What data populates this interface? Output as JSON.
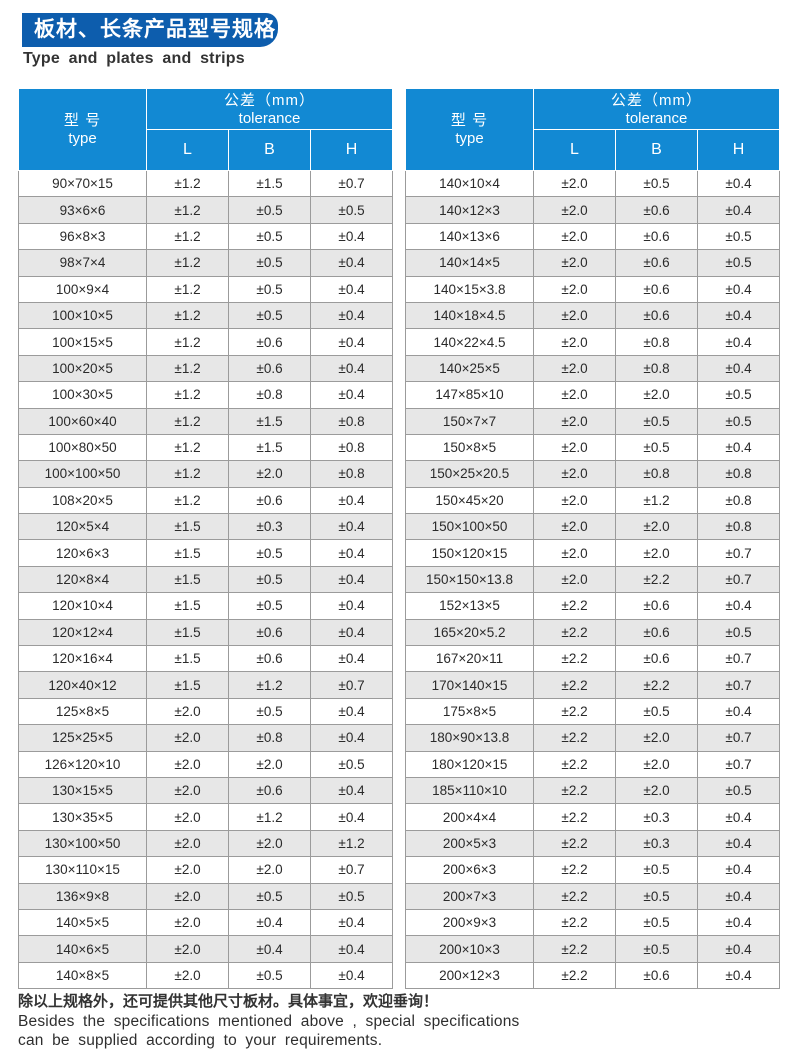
{
  "page": {
    "title_cn": "板材、长条产品型号规格",
    "title_en": "Type and plates and strips"
  },
  "colors": {
    "ribbon_blue": "#0d5dad",
    "header_blue": "#1289d3",
    "row_alt_gray": "#e7e7e7",
    "border_gray": "#9b9b9b"
  },
  "table_header": {
    "type_label_cn": "型  号",
    "type_label_en": "type",
    "tolerance_label_cn": "公差（mm）",
    "tolerance_label_en": "tolerance",
    "col_l": "L",
    "col_b": "B",
    "col_h": "H"
  },
  "left_table_rows": [
    {
      "t": "90×70×15",
      "l": "±1.2",
      "b": "±1.5",
      "h": "±0.7"
    },
    {
      "t": "93×6×6",
      "l": "±1.2",
      "b": "±0.5",
      "h": "±0.5"
    },
    {
      "t": "96×8×3",
      "l": "±1.2",
      "b": "±0.5",
      "h": "±0.4"
    },
    {
      "t": "98×7×4",
      "l": "±1.2",
      "b": "±0.5",
      "h": "±0.4"
    },
    {
      "t": "100×9×4",
      "l": "±1.2",
      "b": "±0.5",
      "h": "±0.4"
    },
    {
      "t": "100×10×5",
      "l": "±1.2",
      "b": "±0.5",
      "h": "±0.4"
    },
    {
      "t": "100×15×5",
      "l": "±1.2",
      "b": "±0.6",
      "h": "±0.4"
    },
    {
      "t": "100×20×5",
      "l": "±1.2",
      "b": "±0.6",
      "h": "±0.4"
    },
    {
      "t": "100×30×5",
      "l": "±1.2",
      "b": "±0.8",
      "h": "±0.4"
    },
    {
      "t": "100×60×40",
      "l": "±1.2",
      "b": "±1.5",
      "h": "±0.8"
    },
    {
      "t": "100×80×50",
      "l": "±1.2",
      "b": "±1.5",
      "h": "±0.8"
    },
    {
      "t": "100×100×50",
      "l": "±1.2",
      "b": "±2.0",
      "h": "±0.8"
    },
    {
      "t": "108×20×5",
      "l": "±1.2",
      "b": "±0.6",
      "h": "±0.4"
    },
    {
      "t": "120×5×4",
      "l": "±1.5",
      "b": "±0.3",
      "h": "±0.4"
    },
    {
      "t": "120×6×3",
      "l": "±1.5",
      "b": "±0.5",
      "h": "±0.4"
    },
    {
      "t": "120×8×4",
      "l": "±1.5",
      "b": "±0.5",
      "h": "±0.4"
    },
    {
      "t": "120×10×4",
      "l": "±1.5",
      "b": "±0.5",
      "h": "±0.4"
    },
    {
      "t": "120×12×4",
      "l": "±1.5",
      "b": "±0.6",
      "h": "±0.4"
    },
    {
      "t": "120×16×4",
      "l": "±1.5",
      "b": "±0.6",
      "h": "±0.4"
    },
    {
      "t": "120×40×12",
      "l": "±1.5",
      "b": "±1.2",
      "h": "±0.7"
    },
    {
      "t": "125×8×5",
      "l": "±2.0",
      "b": "±0.5",
      "h": "±0.4"
    },
    {
      "t": "125×25×5",
      "l": "±2.0",
      "b": "±0.8",
      "h": "±0.4"
    },
    {
      "t": "126×120×10",
      "l": "±2.0",
      "b": "±2.0",
      "h": "±0.5"
    },
    {
      "t": "130×15×5",
      "l": "±2.0",
      "b": "±0.6",
      "h": "±0.4"
    },
    {
      "t": "130×35×5",
      "l": "±2.0",
      "b": "±1.2",
      "h": "±0.4"
    },
    {
      "t": "130×100×50",
      "l": "±2.0",
      "b": "±2.0",
      "h": "±1.2"
    },
    {
      "t": "130×110×15",
      "l": "±2.0",
      "b": "±2.0",
      "h": "±0.7"
    },
    {
      "t": "136×9×8",
      "l": "±2.0",
      "b": "±0.5",
      "h": "±0.5"
    },
    {
      "t": "140×5×5",
      "l": "±2.0",
      "b": "±0.4",
      "h": "±0.4"
    },
    {
      "t": "140×6×5",
      "l": "±2.0",
      "b": "±0.4",
      "h": "±0.4"
    },
    {
      "t": "140×8×5",
      "l": "±2.0",
      "b": "±0.5",
      "h": "±0.4"
    }
  ],
  "right_table_rows": [
    {
      "t": "140×10×4",
      "l": "±2.0",
      "b": "±0.5",
      "h": "±0.4"
    },
    {
      "t": "140×12×3",
      "l": "±2.0",
      "b": "±0.6",
      "h": "±0.4"
    },
    {
      "t": "140×13×6",
      "l": "±2.0",
      "b": "±0.6",
      "h": "±0.5"
    },
    {
      "t": "140×14×5",
      "l": "±2.0",
      "b": "±0.6",
      "h": "±0.5"
    },
    {
      "t": "140×15×3.8",
      "l": "±2.0",
      "b": "±0.6",
      "h": "±0.4"
    },
    {
      "t": "140×18×4.5",
      "l": "±2.0",
      "b": "±0.6",
      "h": "±0.4"
    },
    {
      "t": "140×22×4.5",
      "l": "±2.0",
      "b": "±0.8",
      "h": "±0.4"
    },
    {
      "t": "140×25×5",
      "l": "±2.0",
      "b": "±0.8",
      "h": "±0.4"
    },
    {
      "t": "147×85×10",
      "l": "±2.0",
      "b": "±2.0",
      "h": "±0.5"
    },
    {
      "t": "150×7×7",
      "l": "±2.0",
      "b": "±0.5",
      "h": "±0.5"
    },
    {
      "t": "150×8×5",
      "l": "±2.0",
      "b": "±0.5",
      "h": "±0.4"
    },
    {
      "t": "150×25×20.5",
      "l": "±2.0",
      "b": "±0.8",
      "h": "±0.8"
    },
    {
      "t": "150×45×20",
      "l": "±2.0",
      "b": "±1.2",
      "h": "±0.8"
    },
    {
      "t": "150×100×50",
      "l": "±2.0",
      "b": "±2.0",
      "h": "±0.8"
    },
    {
      "t": "150×120×15",
      "l": "±2.0",
      "b": "±2.0",
      "h": "±0.7"
    },
    {
      "t": "150×150×13.8",
      "l": "±2.0",
      "b": "±2.2",
      "h": "±0.7"
    },
    {
      "t": "152×13×5",
      "l": "±2.2",
      "b": "±0.6",
      "h": "±0.4"
    },
    {
      "t": "165×20×5.2",
      "l": "±2.2",
      "b": "±0.6",
      "h": "±0.5"
    },
    {
      "t": "167×20×11",
      "l": "±2.2",
      "b": "±0.6",
      "h": "±0.7"
    },
    {
      "t": "170×140×15",
      "l": "±2.2",
      "b": "±2.2",
      "h": "±0.7"
    },
    {
      "t": "175×8×5",
      "l": "±2.2",
      "b": "±0.5",
      "h": "±0.4"
    },
    {
      "t": "180×90×13.8",
      "l": "±2.2",
      "b": "±2.0",
      "h": "±0.7"
    },
    {
      "t": "180×120×15",
      "l": "±2.2",
      "b": "±2.0",
      "h": "±0.7"
    },
    {
      "t": "185×110×10",
      "l": "±2.2",
      "b": "±2.0",
      "h": "±0.5"
    },
    {
      "t": "200×4×4",
      "l": "±2.2",
      "b": "±0.3",
      "h": "±0.4"
    },
    {
      "t": "200×5×3",
      "l": "±2.2",
      "b": "±0.3",
      "h": "±0.4"
    },
    {
      "t": "200×6×3",
      "l": "±2.2",
      "b": "±0.5",
      "h": "±0.4"
    },
    {
      "t": "200×7×3",
      "l": "±2.2",
      "b": "±0.5",
      "h": "±0.4"
    },
    {
      "t": "200×9×3",
      "l": "±2.2",
      "b": "±0.5",
      "h": "±0.4"
    },
    {
      "t": "200×10×3",
      "l": "±2.2",
      "b": "±0.5",
      "h": "±0.4"
    },
    {
      "t": "200×12×3",
      "l": "±2.2",
      "b": "±0.6",
      "h": "±0.4"
    }
  ],
  "footer": {
    "line_cn": "除以上规格外，还可提供其他尺寸板材。具体事宜，欢迎垂询！",
    "line_en1": "Besides the specifications mentioned above , special specifications",
    "line_en2": "can be supplied according to your requirements."
  }
}
